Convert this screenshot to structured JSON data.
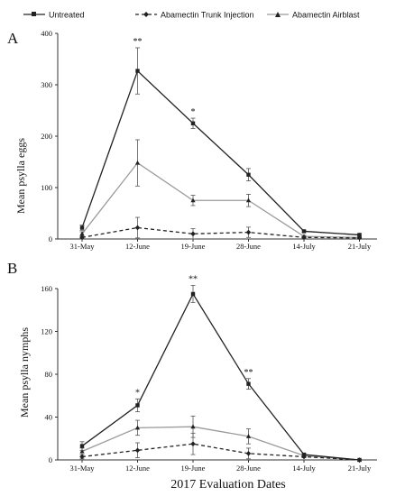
{
  "legend": [
    {
      "label": "Untreated",
      "style": "solid",
      "color": "#222222",
      "marker": "square"
    },
    {
      "label": "Abamectin Trunk Injection",
      "style": "dashed",
      "color": "#222222",
      "marker": "diamond"
    },
    {
      "label": "Abamectin Airblast",
      "style": "solid",
      "color": "#9a9a9a",
      "marker": "triangle"
    }
  ],
  "xlabel": "2017 Evaluation Dates",
  "chart_data": [
    {
      "type": "line",
      "panel": "A",
      "ylabel": "Mean psylla eggs",
      "ylim": [
        0,
        400
      ],
      "yticks": [
        0,
        100,
        200,
        300,
        400
      ],
      "categories": [
        "31-May",
        "12-June",
        "19-June",
        "28-June",
        "14-July",
        "21-July"
      ],
      "series": [
        {
          "name": "Untreated",
          "values": [
            22,
            327,
            225,
            125,
            15,
            8
          ],
          "errors": [
            5,
            45,
            10,
            12,
            2,
            2
          ]
        },
        {
          "name": "Abamectin Trunk Injection",
          "values": [
            3,
            22,
            10,
            13,
            3,
            2
          ],
          "errors": [
            2,
            20,
            10,
            10,
            2,
            1
          ]
        },
        {
          "name": "Abamectin Airblast",
          "values": [
            10,
            148,
            75,
            75,
            5,
            3
          ],
          "errors": [
            4,
            45,
            10,
            12,
            2,
            1
          ]
        }
      ],
      "annotations": [
        {
          "category": "12-June",
          "text": "**"
        },
        {
          "category": "19-June",
          "text": "*"
        }
      ]
    },
    {
      "type": "line",
      "panel": "B",
      "ylabel": "Mean psylla nymphs",
      "ylim": [
        0,
        160
      ],
      "yticks": [
        0,
        40,
        80,
        120,
        160
      ],
      "categories": [
        "31-May",
        "12-June",
        "19-June",
        "28-June",
        "14-July",
        "21-July"
      ],
      "series": [
        {
          "name": "Untreated",
          "values": [
            13,
            51,
            155,
            71,
            5,
            0
          ],
          "errors": [
            4,
            6,
            8,
            5,
            1,
            0.5
          ]
        },
        {
          "name": "Abamectin Trunk Injection",
          "values": [
            3,
            9,
            15,
            6,
            3,
            0
          ],
          "errors": [
            2,
            7,
            10,
            5,
            1,
            0.5
          ]
        },
        {
          "name": "Abamectin Airblast",
          "values": [
            8,
            30,
            31,
            22,
            4,
            0
          ],
          "errors": [
            3,
            7,
            10,
            7,
            1,
            0.5
          ]
        }
      ],
      "annotations": [
        {
          "category": "12-June",
          "text": "*"
        },
        {
          "category": "19-June",
          "text": "**"
        },
        {
          "category": "28-June",
          "text": "**"
        }
      ]
    }
  ]
}
